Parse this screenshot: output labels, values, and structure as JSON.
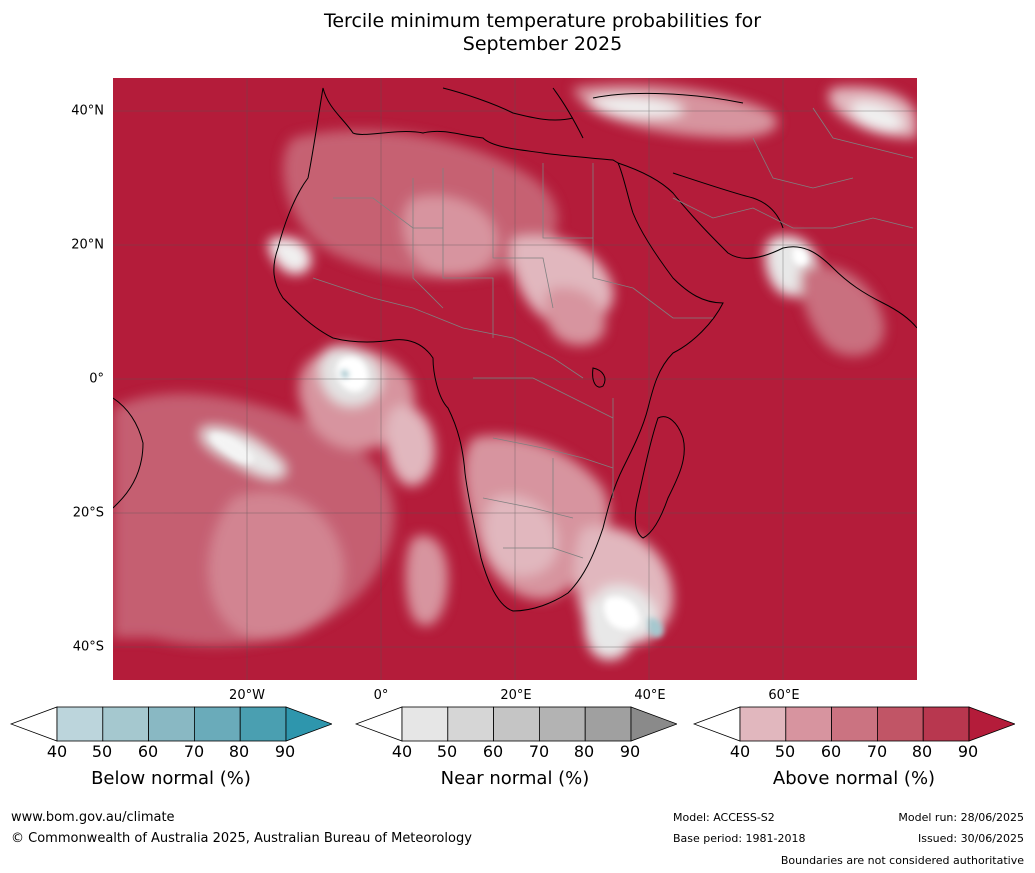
{
  "title": {
    "line1": "Tercile minimum temperature probabilities for",
    "line2": "September 2025"
  },
  "map": {
    "region": "Africa",
    "lat_labels": [
      "40°N",
      "20°N",
      "0°",
      "20°S",
      "40°S"
    ],
    "lon_labels": [
      "20°W",
      "0°",
      "20°E",
      "40°E",
      "60°E"
    ],
    "dominant_category": "Above normal",
    "colors": {
      "ocean_dominant": "#b41c3a",
      "coastline": "#000000",
      "borders": "#808080",
      "grid": "#555555"
    }
  },
  "colorbars": [
    {
      "label": "Below normal (%)",
      "ticks": [
        "40",
        "50",
        "60",
        "70",
        "80",
        "90"
      ],
      "colors": [
        "#ffffff",
        "#bcd5dc",
        "#a5c8cf",
        "#89b8c3",
        "#6aabba",
        "#4a9fb1",
        "#2e96ad"
      ]
    },
    {
      "label": "Near normal (%)",
      "ticks": [
        "40",
        "50",
        "60",
        "70",
        "80",
        "90"
      ],
      "colors": [
        "#ffffff",
        "#e6e6e6",
        "#d6d6d6",
        "#c5c5c5",
        "#b3b3b3",
        "#a0a0a0",
        "#8a8a8a"
      ]
    },
    {
      "label": "Above normal (%)",
      "ticks": [
        "40",
        "50",
        "60",
        "70",
        "80",
        "90"
      ],
      "colors": [
        "#ffffff",
        "#e1b7be",
        "#d7949f",
        "#cb7381",
        "#c15566",
        "#b8374f",
        "#b41c3a"
      ]
    }
  ],
  "footer": {
    "website": "www.bom.gov.au/climate",
    "copyright": "© Commonwealth of Australia 2025, Australian Bureau of Meteorology",
    "model": "Model: ACCESS-S2",
    "base_period": "Base period: 1981-2018",
    "model_run": "Model run: 28/06/2025",
    "issued": "Issued: 30/06/2025",
    "disclaimer": "Boundaries are not considered authoritative"
  }
}
